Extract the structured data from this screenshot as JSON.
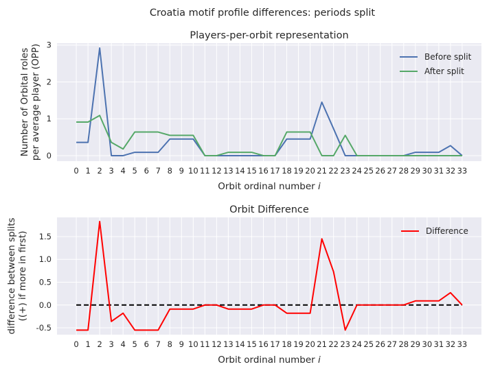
{
  "suptitle": "Croatia motif profile differences: periods split",
  "chart_data": [
    {
      "type": "line",
      "title": "Players-per-orbit representation",
      "xlabel": "Orbit ordinal number i",
      "ylabel": [
        "Number of Orbital roles",
        "per average player (OPP)"
      ],
      "x": [
        0,
        1,
        2,
        3,
        4,
        5,
        6,
        7,
        8,
        9,
        10,
        11,
        12,
        13,
        14,
        15,
        16,
        17,
        18,
        19,
        20,
        21,
        22,
        23,
        24,
        25,
        26,
        27,
        28,
        29,
        30,
        31,
        32,
        33
      ],
      "xlim": [
        -1.65,
        34.65
      ],
      "ylim": [
        -0.15,
        3.05
      ],
      "yticks": [
        0,
        1,
        2,
        3
      ],
      "grid": true,
      "legend": "top-right",
      "series": [
        {
          "name": "Before split",
          "color": "#4c72b0",
          "values": [
            0.36,
            0.36,
            2.92,
            0,
            0,
            0.09,
            0.09,
            0.09,
            0.45,
            0.45,
            0.45,
            0,
            0,
            0,
            0,
            0,
            0,
            0,
            0.45,
            0.45,
            0.45,
            1.45,
            0.73,
            0,
            0,
            0,
            0,
            0,
            0,
            0.09,
            0.09,
            0.09,
            0.27,
            0
          ]
        },
        {
          "name": "After split",
          "color": "#55a868",
          "values": [
            0.91,
            0.91,
            1.09,
            0.36,
            0.18,
            0.64,
            0.64,
            0.64,
            0.55,
            0.55,
            0.55,
            0,
            0,
            0.09,
            0.09,
            0.09,
            0,
            0,
            0.64,
            0.64,
            0.64,
            0,
            0,
            0.55,
            0,
            0,
            0,
            0,
            0,
            0,
            0,
            0,
            0,
            0
          ]
        }
      ]
    },
    {
      "type": "line",
      "title": "Orbit Difference",
      "xlabel": "Orbit ordinal number i",
      "ylabel": [
        "difference between splits",
        "((+) if more in first)"
      ],
      "x": [
        0,
        1,
        2,
        3,
        4,
        5,
        6,
        7,
        8,
        9,
        10,
        11,
        12,
        13,
        14,
        15,
        16,
        17,
        18,
        19,
        20,
        21,
        22,
        23,
        24,
        25,
        26,
        27,
        28,
        29,
        30,
        31,
        32,
        33
      ],
      "xlim": [
        -1.65,
        34.65
      ],
      "ylim": [
        -0.65,
        1.92
      ],
      "yticks": [
        -0.5,
        0.0,
        0.5,
        1.0,
        1.5
      ],
      "grid": true,
      "legend": "top-right",
      "zero_line": {
        "y": 0,
        "style": "dashed",
        "color": "#000000"
      },
      "series": [
        {
          "name": "Difference",
          "color": "#ff0000",
          "values": [
            -0.55,
            -0.55,
            1.83,
            -0.36,
            -0.18,
            -0.55,
            -0.55,
            -0.55,
            -0.09,
            -0.09,
            -0.09,
            0,
            0,
            -0.09,
            -0.09,
            -0.09,
            0,
            0,
            -0.18,
            -0.18,
            -0.18,
            1.45,
            0.73,
            -0.55,
            0,
            0,
            0,
            0,
            0,
            0.09,
            0.09,
            0.09,
            0.27,
            0
          ]
        }
      ]
    }
  ]
}
